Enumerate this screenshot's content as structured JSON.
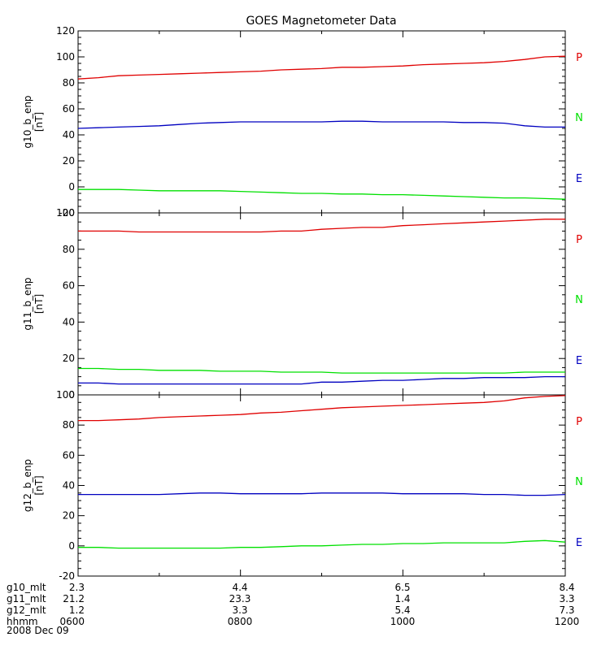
{
  "chart_data": {
    "type": "line",
    "title": "GOES Magnetometer Data",
    "x": [
      0,
      0.25,
      0.5,
      0.75,
      1,
      1.25,
      1.5,
      1.75,
      2,
      2.25,
      2.5,
      2.75,
      3,
      3.25,
      3.5,
      3.75,
      4,
      4.25,
      4.5,
      4.75,
      5,
      5.25,
      5.5,
      5.75,
      6
    ],
    "panels": [
      {
        "ylabel": "g10_b_enp",
        "yunit": "[nT]",
        "ylim": [
          -20,
          120
        ],
        "yticks": [
          -20,
          0,
          20,
          40,
          60,
          80,
          100,
          120
        ],
        "series": [
          {
            "name": "P",
            "color": "#e00000",
            "values": [
              83,
              84,
              85.5,
              86,
              86.5,
              87,
              87.5,
              88,
              88.5,
              89,
              90,
              90.5,
              91,
              92,
              92,
              92.5,
              93,
              94,
              94.5,
              95,
              95.5,
              96.5,
              98,
              100,
              100.5
            ]
          },
          {
            "name": "N",
            "color": "#00e000",
            "values": [
              -2,
              -2,
              -2,
              -2.5,
              -3,
              -3,
              -3,
              -3,
              -3.5,
              -4,
              -4.5,
              -5,
              -5,
              -5.5,
              -5.5,
              -6,
              -6,
              -6.5,
              -7,
              -7.5,
              -8,
              -8.5,
              -8.5,
              -9,
              -9.5
            ]
          },
          {
            "name": "E",
            "color": "#0000c0",
            "values": [
              45,
              45.5,
              46,
              46.5,
              47,
              48,
              49,
              49.5,
              50,
              50,
              50,
              50,
              50,
              50.5,
              50.5,
              50,
              50,
              50,
              50,
              49.5,
              49.5,
              49,
              47,
              46,
              46
            ]
          }
        ]
      },
      {
        "ylabel": "g11_b_enp",
        "yunit": "[nT]",
        "ylim": [
          0,
          100
        ],
        "yticks": [
          0,
          20,
          40,
          60,
          80,
          100
        ],
        "series": [
          {
            "name": "P",
            "color": "#e00000",
            "values": [
              90,
              90,
              90,
              89.5,
              89.5,
              89.5,
              89.5,
              89.5,
              89.5,
              89.5,
              90,
              90,
              91,
              91.5,
              92,
              92,
              93,
              93.5,
              94,
              94.5,
              95,
              95.5,
              96,
              96.5,
              96.5
            ]
          },
          {
            "name": "N",
            "color": "#00e000",
            "values": [
              14.5,
              14.5,
              14,
              14,
              13.5,
              13.5,
              13.5,
              13,
              13,
              13,
              12.5,
              12.5,
              12.5,
              12,
              12,
              12,
              12,
              12,
              12,
              12,
              12,
              12,
              12.5,
              12.5,
              12.5
            ]
          },
          {
            "name": "E",
            "color": "#0000c0",
            "values": [
              6.5,
              6.5,
              6,
              6,
              6,
              6,
              6,
              6,
              6,
              6,
              6,
              6,
              7,
              7,
              7.5,
              8,
              8,
              8.5,
              9,
              9,
              9.5,
              9.5,
              9.5,
              10,
              10
            ]
          }
        ]
      },
      {
        "ylabel": "g12_b_enp",
        "yunit": "[nT]",
        "ylim": [
          -20,
          100
        ],
        "yticks": [
          -20,
          0,
          20,
          40,
          60,
          80,
          100
        ],
        "series": [
          {
            "name": "P",
            "color": "#e00000",
            "values": [
              83,
              83,
              83.5,
              84,
              85,
              85.5,
              86,
              86.5,
              87,
              88,
              88.5,
              89.5,
              90.5,
              91.5,
              92,
              92.5,
              93,
              93.5,
              94,
              94.5,
              95,
              96,
              98,
              99,
              99.5
            ]
          },
          {
            "name": "N",
            "color": "#00e000",
            "values": [
              -1,
              -1,
              -1.5,
              -1.5,
              -1.5,
              -1.5,
              -1.5,
              -1.5,
              -1,
              -1,
              -0.5,
              0,
              0,
              0.5,
              1,
              1,
              1.5,
              1.5,
              2,
              2,
              2,
              2,
              3,
              3.5,
              2.5
            ]
          },
          {
            "name": "E",
            "color": "#0000c0",
            "values": [
              34,
              34,
              34,
              34,
              34,
              34.5,
              35,
              35,
              34.5,
              34.5,
              34.5,
              34.5,
              35,
              35,
              35,
              35,
              34.5,
              34.5,
              34.5,
              34.5,
              34,
              34,
              33.5,
              33.5,
              34
            ]
          }
        ]
      }
    ],
    "footer": {
      "rows": [
        {
          "label": "g10_mlt",
          "values": [
            "2.3",
            "4.4",
            "6.5",
            "8.4"
          ]
        },
        {
          "label": "g11_mlt",
          "values": [
            "21.2",
            "23.3",
            "1.4",
            "3.3"
          ]
        },
        {
          "label": "g12_mlt",
          "values": [
            "1.2",
            "3.3",
            "5.4",
            "7.3"
          ]
        },
        {
          "label": "hhmm",
          "values": [
            "0600",
            "0800",
            "1000",
            "1200"
          ]
        }
      ],
      "date": "2008 Dec 09"
    }
  }
}
